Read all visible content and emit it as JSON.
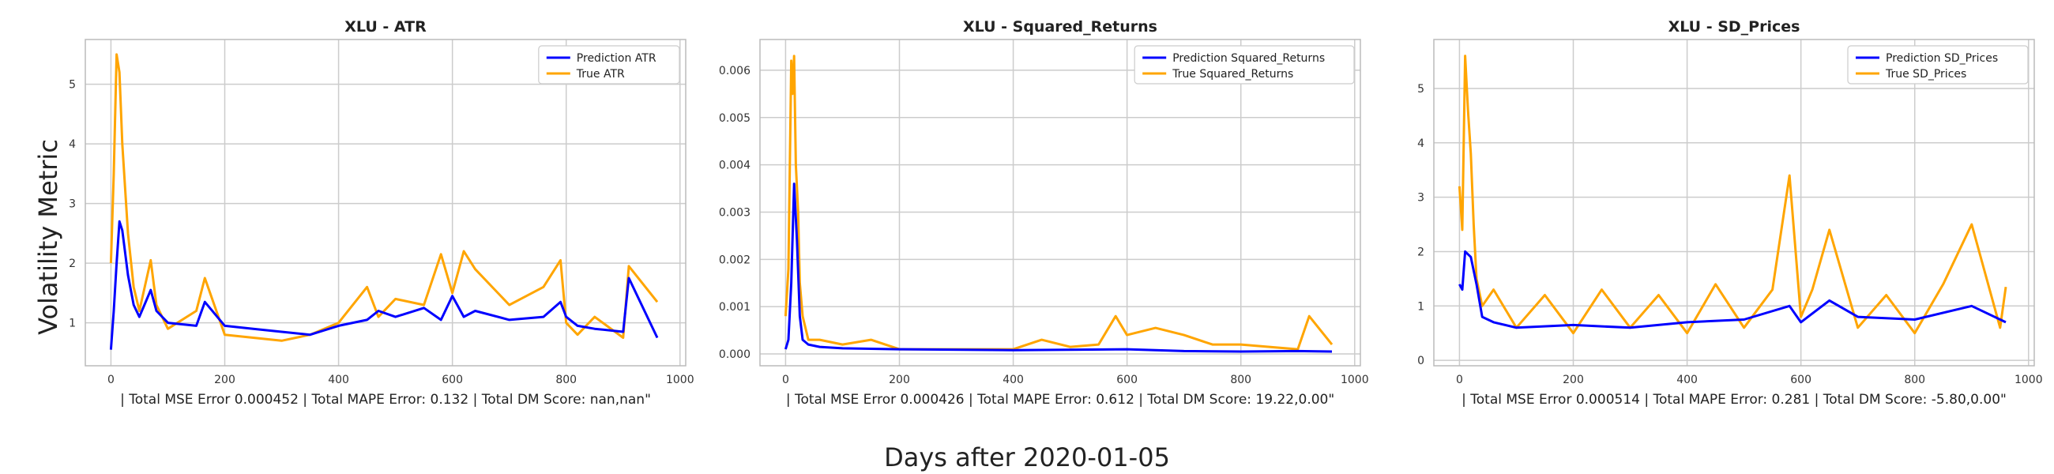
{
  "figure": {
    "ylabel": "Volatility Metric",
    "xlabel": "Days after 2020-01-05"
  },
  "colors": {
    "prediction": "#0000ff",
    "true": "#ffa500",
    "grid": "#cccccc",
    "frame": "#bbbbbb"
  },
  "chart_data": [
    {
      "type": "line",
      "title": "XLU - ATR",
      "caption": "| Total MSE Error 0.000452 | Total MAPE Error: 0.132 | Total DM Score: nan,nan\"",
      "xlim": [
        -45,
        1010
      ],
      "ylim": [
        0.28,
        5.75
      ],
      "xticks": [
        0,
        200,
        400,
        600,
        800,
        1000
      ],
      "yticks": [
        1,
        2,
        3,
        4,
        5
      ],
      "ytick_labels": [
        "1",
        "2",
        "3",
        "4",
        "5"
      ],
      "legend": "top-right",
      "grid": true,
      "series": [
        {
          "name": "Prediction ATR",
          "color": "prediction",
          "x": [
            0,
            5,
            10,
            15,
            20,
            30,
            40,
            50,
            70,
            80,
            100,
            150,
            165,
            200,
            250,
            300,
            350,
            400,
            450,
            470,
            500,
            550,
            580,
            600,
            620,
            640,
            700,
            760,
            790,
            800,
            820,
            850,
            900,
            910,
            960
          ],
          "y": [
            0.55,
            1.2,
            2.0,
            2.7,
            2.55,
            1.8,
            1.3,
            1.1,
            1.55,
            1.2,
            1.0,
            0.95,
            1.35,
            0.95,
            0.9,
            0.85,
            0.8,
            0.95,
            1.05,
            1.2,
            1.1,
            1.25,
            1.05,
            1.45,
            1.1,
            1.2,
            1.05,
            1.1,
            1.35,
            1.1,
            0.95,
            0.9,
            0.85,
            1.75,
            0.75
          ]
        },
        {
          "name": "True ATR",
          "color": "true",
          "x": [
            0,
            5,
            10,
            15,
            20,
            30,
            40,
            50,
            70,
            80,
            100,
            150,
            165,
            200,
            250,
            300,
            350,
            400,
            450,
            470,
            500,
            550,
            580,
            600,
            620,
            640,
            700,
            760,
            790,
            800,
            820,
            850,
            900,
            910,
            960
          ],
          "y": [
            2.0,
            3.5,
            5.5,
            5.2,
            4.0,
            2.5,
            1.6,
            1.2,
            2.05,
            1.3,
            0.9,
            1.2,
            1.75,
            0.8,
            0.75,
            0.7,
            0.8,
            1.0,
            1.6,
            1.1,
            1.4,
            1.3,
            2.15,
            1.5,
            2.2,
            1.9,
            1.3,
            1.6,
            2.05,
            1.0,
            0.8,
            1.1,
            0.75,
            1.95,
            1.35
          ]
        }
      ]
    },
    {
      "type": "line",
      "title": "XLU - Squared_Returns",
      "caption": "| Total MSE Error 0.000426 | Total MAPE Error: 0.612 | Total DM Score: 19.22,0.00\"",
      "xlim": [
        -45,
        1010
      ],
      "ylim": [
        -0.00025,
        0.00665
      ],
      "xticks": [
        0,
        200,
        400,
        600,
        800,
        1000
      ],
      "yticks": [
        0,
        0.001,
        0.002,
        0.003,
        0.004,
        0.005,
        0.006
      ],
      "ytick_labels": [
        "0.000",
        "0.001",
        "0.002",
        "0.003",
        "0.004",
        "0.005",
        "0.006"
      ],
      "legend": "top-right",
      "grid": true,
      "series": [
        {
          "name": "Prediction Squared_Returns",
          "color": "prediction",
          "x": [
            0,
            5,
            10,
            15,
            20,
            25,
            30,
            40,
            60,
            100,
            200,
            400,
            600,
            650,
            700,
            800,
            900,
            960
          ],
          "y": [
            0.0001,
            0.0003,
            0.0015,
            0.0036,
            0.0024,
            0.0008,
            0.0003,
            0.0002,
            0.00015,
            0.00012,
            0.0001,
            8e-05,
            0.0001,
            8e-05,
            6e-05,
            5e-05,
            6e-05,
            5e-05
          ]
        },
        {
          "name": "True Squared_Returns",
          "color": "true",
          "x": [
            0,
            5,
            10,
            12,
            15,
            18,
            22,
            25,
            30,
            40,
            60,
            100,
            150,
            200,
            300,
            400,
            450,
            500,
            550,
            580,
            600,
            650,
            700,
            750,
            800,
            900,
            920,
            960
          ],
          "y": [
            0.0008,
            0.0018,
            0.0062,
            0.0055,
            0.0063,
            0.004,
            0.003,
            0.0015,
            0.0008,
            0.0003,
            0.0003,
            0.0002,
            0.0003,
            0.0001,
            0.0001,
            0.0001,
            0.0003,
            0.00015,
            0.0002,
            0.0008,
            0.0004,
            0.00055,
            0.0004,
            0.0002,
            0.0002,
            0.0001,
            0.0008,
            0.0002
          ]
        }
      ]
    },
    {
      "type": "line",
      "title": "XLU - SD_Prices",
      "caption": "| Total MSE Error 0.000514 | Total MAPE Error: 0.281 | Total DM Score: -5.80,0.00\"",
      "xlim": [
        -45,
        1010
      ],
      "ylim": [
        -0.1,
        5.9
      ],
      "xticks": [
        0,
        200,
        400,
        600,
        800,
        1000
      ],
      "yticks": [
        0,
        1,
        2,
        3,
        4,
        5
      ],
      "ytick_labels": [
        "0",
        "1",
        "2",
        "3",
        "4",
        "5"
      ],
      "legend": "top-right",
      "grid": true,
      "series": [
        {
          "name": "Prediction SD_Prices",
          "color": "prediction",
          "x": [
            0,
            5,
            10,
            20,
            30,
            40,
            60,
            100,
            200,
            300,
            400,
            500,
            580,
            600,
            650,
            700,
            800,
            900,
            960
          ],
          "y": [
            1.4,
            1.3,
            2.0,
            1.9,
            1.4,
            0.8,
            0.7,
            0.6,
            0.65,
            0.6,
            0.7,
            0.75,
            1.0,
            0.7,
            1.1,
            0.8,
            0.75,
            1.0,
            0.7
          ]
        },
        {
          "name": "True SD_Prices",
          "color": "true",
          "x": [
            0,
            5,
            10,
            15,
            20,
            25,
            30,
            40,
            60,
            100,
            150,
            200,
            250,
            300,
            350,
            400,
            450,
            500,
            550,
            580,
            600,
            620,
            650,
            700,
            750,
            800,
            850,
            900,
            950,
            960
          ],
          "y": [
            3.2,
            2.4,
            5.6,
            4.6,
            3.8,
            2.5,
            1.5,
            1.0,
            1.3,
            0.6,
            1.2,
            0.5,
            1.3,
            0.6,
            1.2,
            0.5,
            1.4,
            0.6,
            1.3,
            3.4,
            0.8,
            1.3,
            2.4,
            0.6,
            1.2,
            0.5,
            1.4,
            2.5,
            0.6,
            1.35
          ]
        }
      ]
    }
  ]
}
